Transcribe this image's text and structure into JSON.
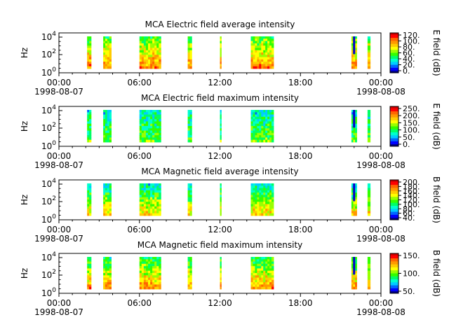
{
  "colorscale": [
    "#000080",
    "#0000ff",
    "#0066ff",
    "#00ccff",
    "#00ffcc",
    "#00ff66",
    "#33ff00",
    "#99ff00",
    "#ffff00",
    "#ffcc00",
    "#ff9900",
    "#ff6600",
    "#ff0000",
    "#cc0000"
  ],
  "chart_data": [
    {
      "type": "heatmap",
      "title": "MCA  Electric field average intensity",
      "ylabel": "Hz",
      "y_scale": "log",
      "y_ticks": [
        {
          "base": "10",
          "exp": "0"
        },
        {
          "base": "10",
          "exp": "2"
        },
        {
          "base": "10",
          "exp": "4"
        }
      ],
      "x_ticks": [
        "00:00",
        "06:00",
        "12:00",
        "18:00",
        "00:00"
      ],
      "x_dates": [
        "1998-08-07",
        "1998-08-08"
      ],
      "colorbar_label": "E field (dB)",
      "colorbar_ticks": [
        "0.",
        "20.",
        "40.",
        "60.",
        "80.",
        "100.",
        "120."
      ],
      "data_intervals": [
        [
          2.1,
          2.4
        ],
        [
          3.3,
          3.9
        ],
        [
          6.0,
          7.6
        ],
        [
          9.6,
          9.9
        ],
        [
          12.0,
          12.1
        ],
        [
          14.3,
          16.0
        ],
        [
          21.8,
          22.2
        ],
        [
          23.0,
          23.2
        ]
      ]
    },
    {
      "type": "heatmap",
      "title": "MCA  Electric field maximum intensity",
      "ylabel": "Hz",
      "y_scale": "log",
      "y_ticks": [
        {
          "base": "10",
          "exp": "0"
        },
        {
          "base": "10",
          "exp": "2"
        },
        {
          "base": "10",
          "exp": "4"
        }
      ],
      "x_ticks": [
        "00:00",
        "06:00",
        "12:00",
        "18:00",
        "00:00"
      ],
      "x_dates": [
        "1998-08-07",
        "1998-08-08"
      ],
      "colorbar_label": "E field (dB)",
      "colorbar_ticks": [
        "0.",
        "50.",
        "100.",
        "150.",
        "200.",
        "250."
      ],
      "data_intervals": [
        [
          2.1,
          2.4
        ],
        [
          3.3,
          3.9
        ],
        [
          6.0,
          7.6
        ],
        [
          9.6,
          9.9
        ],
        [
          12.0,
          12.1
        ],
        [
          14.3,
          16.0
        ],
        [
          21.8,
          22.2
        ],
        [
          23.0,
          23.2
        ]
      ]
    },
    {
      "type": "heatmap",
      "title": "MCA  Magnetic field average intensity",
      "ylabel": "Hz",
      "y_scale": "log",
      "y_ticks": [
        {
          "base": "10",
          "exp": "0"
        },
        {
          "base": "10",
          "exp": "2"
        },
        {
          "base": "10",
          "exp": "4"
        }
      ],
      "x_ticks": [
        "00:00",
        "06:00",
        "12:00",
        "18:00",
        "00:00"
      ],
      "x_dates": [
        "1998-08-07",
        "1998-08-08"
      ],
      "colorbar_label": "B field (dB)",
      "colorbar_ticks": [
        "40.",
        "60.",
        "80.",
        "100.",
        "120.",
        "140.",
        "160.",
        "180.",
        "200."
      ],
      "data_intervals": [
        [
          2.1,
          2.4
        ],
        [
          3.3,
          3.9
        ],
        [
          6.0,
          7.6
        ],
        [
          9.6,
          9.9
        ],
        [
          12.0,
          12.1
        ],
        [
          14.3,
          16.0
        ],
        [
          21.8,
          22.2
        ],
        [
          23.0,
          23.2
        ]
      ]
    },
    {
      "type": "heatmap",
      "title": "MCA  Magnetic field maximum intensity",
      "ylabel": "Hz",
      "y_scale": "log",
      "y_ticks": [
        {
          "base": "10",
          "exp": "0"
        },
        {
          "base": "10",
          "exp": "2"
        },
        {
          "base": "10",
          "exp": "4"
        }
      ],
      "x_ticks": [
        "00:00",
        "06:00",
        "12:00",
        "18:00",
        "00:00"
      ],
      "x_dates": [
        "1998-08-07",
        "1998-08-08"
      ],
      "colorbar_label": "B field (dB)",
      "colorbar_ticks": [
        "50.",
        "100.",
        "150."
      ],
      "data_intervals": [
        [
          2.1,
          2.4
        ],
        [
          3.3,
          3.9
        ],
        [
          6.0,
          7.6
        ],
        [
          9.6,
          9.9
        ],
        [
          12.0,
          12.1
        ],
        [
          14.3,
          16.0
        ],
        [
          21.8,
          22.2
        ],
        [
          23.0,
          23.2
        ]
      ]
    }
  ]
}
